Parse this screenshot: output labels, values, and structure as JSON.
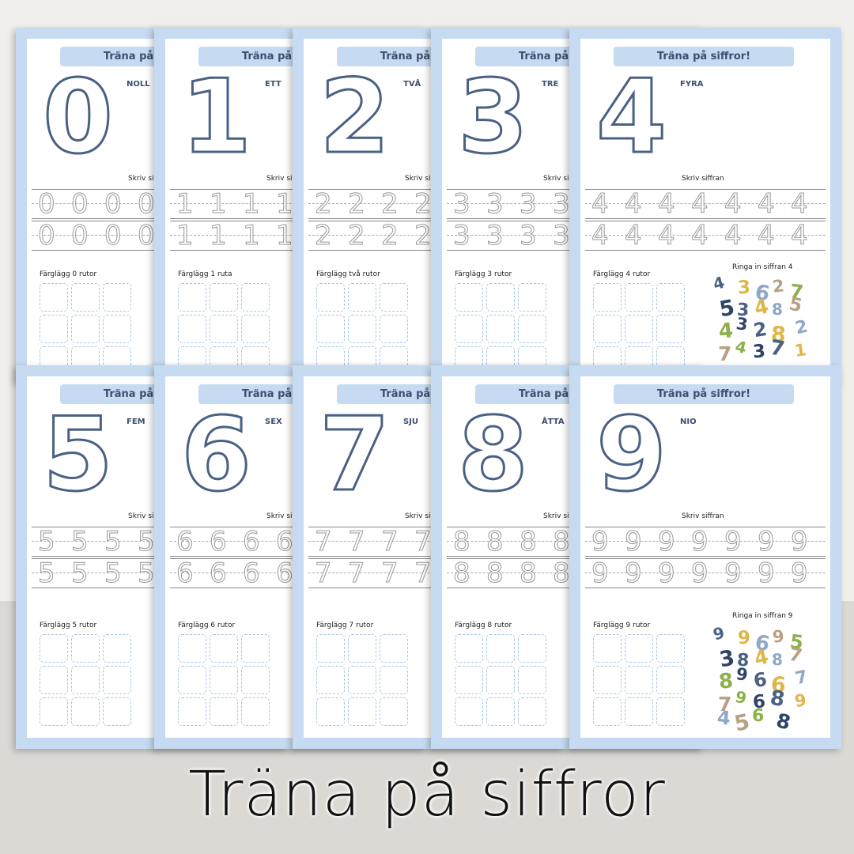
{
  "sheets": [
    {
      "title": "Träna på siffror!",
      "digit": "0",
      "word": "NOLL",
      "write_label": "Skriv siffran",
      "color_label": "Färglägg 0 rutor"
    },
    {
      "title": "Träna på siffror!",
      "digit": "1",
      "word": "ETT",
      "write_label": "Skriv siffran",
      "color_label": "Färglägg 1 ruta"
    },
    {
      "title": "Träna på siffror!",
      "digit": "2",
      "word": "TVÅ",
      "write_label": "Skriv siffran",
      "color_label": "Färglägg två rutor"
    },
    {
      "title": "Träna på siffror!",
      "digit": "3",
      "word": "TRE",
      "write_label": "Skriv siffran",
      "color_label": "Färglägg 3 rutor"
    },
    {
      "title": "Träna på siffror!",
      "digit": "4",
      "word": "FYRA",
      "write_label": "Skriv siffran",
      "color_label": "Färglägg 4 rutor",
      "circle_label": "Ringa in siffran 4",
      "circle_numbers": [
        "4",
        "3",
        "6",
        "2",
        "7",
        "5",
        "3",
        "4",
        "8",
        "5",
        "4",
        "3",
        "2",
        "8",
        "2",
        "7",
        "4",
        "3",
        "7",
        "1"
      ]
    },
    {
      "title": "Träna på siffror!",
      "digit": "5",
      "word": "FEM",
      "write_label": "Skriv siffran",
      "color_label": "Färglägg 5 rutor"
    },
    {
      "title": "Träna på siffror!",
      "digit": "6",
      "word": "SEX",
      "write_label": "Skriv siffran",
      "color_label": "Färglägg 6 rutor"
    },
    {
      "title": "Träna på siffror!",
      "digit": "7",
      "word": "SJU",
      "write_label": "Skriv siffran",
      "color_label": "Färglägg 7 rutor"
    },
    {
      "title": "Träna på siffror!",
      "digit": "8",
      "word": "ÅTTA",
      "write_label": "Skriv siffran",
      "color_label": "Färglägg 8 rutor"
    },
    {
      "title": "Träna på siffror!",
      "digit": "9",
      "word": "NIO",
      "write_label": "Skriv siffran",
      "color_label": "Färglägg 9 rutor",
      "circle_label": "Ringa in siffran 9",
      "circle_numbers": [
        "9",
        "9",
        "6",
        "9",
        "5",
        "3",
        "8",
        "4",
        "8",
        "7",
        "8",
        "9",
        "6",
        "6",
        "7",
        "7",
        "9",
        "6",
        "8",
        "9",
        "4",
        "5",
        "6",
        "8"
      ]
    }
  ],
  "banner": "Träna på siffror"
}
